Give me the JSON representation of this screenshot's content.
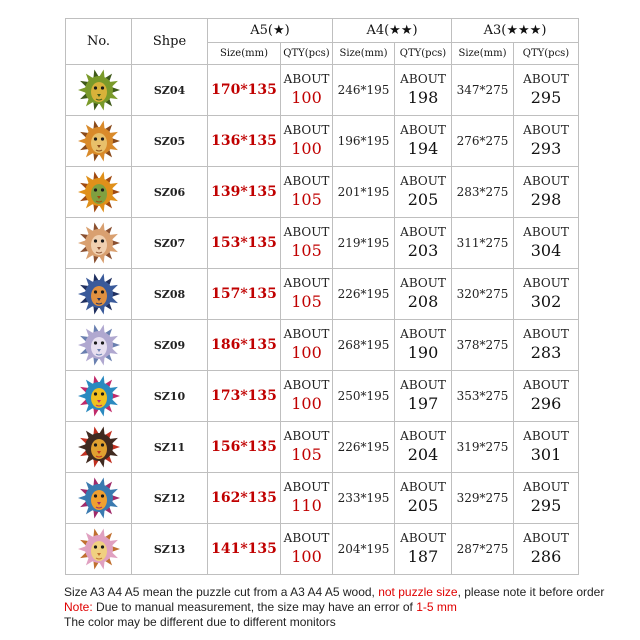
{
  "header": {
    "no": "No.",
    "shape": "Shpe",
    "group_a5": "A5(★)",
    "group_a4": "A4(★★)",
    "group_a3": "A3(★★★)",
    "size_a5": "Size(mm)",
    "qty_a5": "QTY(pcs)",
    "size_a4": "Size(mm)",
    "qty_a4": "QTY(pcs)",
    "size_a3": "Size(mm)",
    "qty_a3": "QTY(pcs)"
  },
  "about": "ABOUT",
  "rows": [
    {
      "code": "SZ04",
      "a5_size": "170*135",
      "a5_qty": "100",
      "a4_size": "246*195",
      "a4_qty": "198",
      "a3_size": "347*275",
      "a3_qty": "295",
      "icon": "lion-green-icon",
      "c1": "#7a9a2a",
      "c2": "#d8b23a",
      "c3": "#3f5a1a"
    },
    {
      "code": "SZ05",
      "a5_size": "136*135",
      "a5_qty": "100",
      "a4_size": "196*195",
      "a4_qty": "194",
      "a3_size": "276*275",
      "a3_qty": "293",
      "icon": "lion-orange-icon",
      "c1": "#d98a2a",
      "c2": "#e8c06a",
      "c3": "#8a4a1a"
    },
    {
      "code": "SZ06",
      "a5_size": "139*135",
      "a5_qty": "105",
      "a4_size": "201*195",
      "a4_qty": "205",
      "a3_size": "283*275",
      "a3_qty": "298",
      "icon": "lion-amber-icon",
      "c1": "#e0901a",
      "c2": "#7fa040",
      "c3": "#a04a10"
    },
    {
      "code": "SZ07",
      "a5_size": "153*135",
      "a5_qty": "105",
      "a4_size": "219*195",
      "a4_qty": "203",
      "a3_size": "311*275",
      "a3_qty": "304",
      "icon": "lioness-icon",
      "c1": "#d9a070",
      "c2": "#f0d0b0",
      "c3": "#8a5030"
    },
    {
      "code": "SZ08",
      "a5_size": "157*135",
      "a5_qty": "105",
      "a4_size": "226*195",
      "a4_qty": "208",
      "a3_size": "320*275",
      "a3_qty": "302",
      "icon": "lion-blue-icon",
      "c1": "#3a5a9a",
      "c2": "#e09040",
      "c3": "#203060"
    },
    {
      "code": "SZ09",
      "a5_size": "186*135",
      "a5_qty": "100",
      "a4_size": "268*195",
      "a4_qty": "190",
      "a3_size": "378*275",
      "a3_qty": "283",
      "icon": "lion-pastel-icon",
      "c1": "#b0a8d0",
      "c2": "#e8e0f0",
      "c3": "#6a80b0"
    },
    {
      "code": "SZ10",
      "a5_size": "173*135",
      "a5_qty": "100",
      "a4_size": "250*195",
      "a4_qty": "197",
      "a3_size": "353*275",
      "a3_qty": "296",
      "icon": "lion-rainbow-icon",
      "c1": "#2a8ac0",
      "c2": "#f0c020",
      "c3": "#c02a6a"
    },
    {
      "code": "SZ11",
      "a5_size": "156*135",
      "a5_qty": "105",
      "a4_size": "226*195",
      "a4_qty": "204",
      "a3_size": "319*275",
      "a3_qty": "301",
      "icon": "lion-dark-icon",
      "c1": "#402a20",
      "c2": "#e0a030",
      "c3": "#c03020"
    },
    {
      "code": "SZ12",
      "a5_size": "162*135",
      "a5_qty": "110",
      "a4_size": "233*195",
      "a4_qty": "205",
      "a3_size": "329*275",
      "a3_qty": "295",
      "icon": "lion-round-icon",
      "c1": "#3a7ab0",
      "c2": "#f0a030",
      "c3": "#a02a6a"
    },
    {
      "code": "SZ13",
      "a5_size": "141*135",
      "a5_qty": "100",
      "a4_size": "204*195",
      "a4_qty": "187",
      "a3_size": "287*275",
      "a3_qty": "286",
      "icon": "lion-circle-pink-icon",
      "c1": "#e0a0c0",
      "c2": "#f0d080",
      "c3": "#c07030"
    }
  ],
  "notes": {
    "line1_a": "Size A3 A4 A5 mean the puzzle cut from a A3 A4 A5 wood, ",
    "line1_red": "not puzzle size",
    "line1_b": ", please note it before order",
    "line2_red": "Note:",
    "line2_b": " Due to manual measurement, the size may have an error of ",
    "line2_red2": "1-5 mm",
    "line3": "The color may be different due to different monitors"
  }
}
